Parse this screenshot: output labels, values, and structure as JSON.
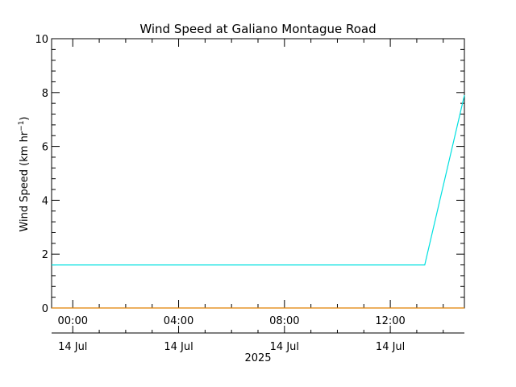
{
  "chart_data": {
    "type": "line",
    "title": "Wind Speed at Galiano Montague Road",
    "ylabel_main": "Wind Speed (km hr",
    "ylabel_exp": "−1",
    "ylabel_close": ")",
    "ylim": [
      0,
      10
    ],
    "y_ticks": [
      0,
      2,
      4,
      6,
      8,
      10
    ],
    "y_tick_labels": [
      "0",
      "2",
      "4",
      "6",
      "8",
      "10"
    ],
    "x_range_hours": [
      -0.8,
      14.8
    ],
    "x_ticks": [
      {
        "hour": 0,
        "time": "00:00",
        "date": "14 Jul"
      },
      {
        "hour": 4,
        "time": "04:00",
        "date": "14 Jul"
      },
      {
        "hour": 8,
        "time": "08:00",
        "date": "14 Jul"
      },
      {
        "hour": 12,
        "time": "12:00",
        "date": "14 Jul"
      }
    ],
    "year_label": "2025",
    "grid": false,
    "series": [
      {
        "color": "#00e0e0",
        "x_hours": [
          -0.8,
          13.3,
          14.8
        ],
        "values": [
          1.6,
          1.6,
          7.9
        ]
      },
      {
        "color": "#e08000",
        "x_hours": [
          -0.8,
          14.8
        ],
        "values": [
          0.0,
          0.0
        ]
      }
    ]
  }
}
